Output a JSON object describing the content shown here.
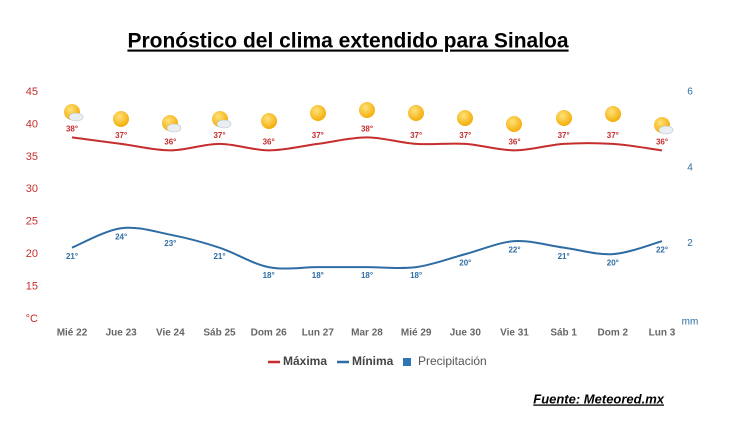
{
  "chart_data": {
    "type": "line",
    "title": "Pronóstico del clima extendido para Sinaloa",
    "source": "Fuente: Meteored.mx",
    "categories": [
      "Mié 22",
      "Jue 23",
      "Vie 24",
      "Sáb 25",
      "Dom 26",
      "Lun 27",
      "Mar 28",
      "Mié 29",
      "Jue 30",
      "Vie 31",
      "Sáb 1",
      "Dom 2",
      "Lun 3"
    ],
    "series": [
      {
        "name": "Máxima",
        "color": "#c62d2d",
        "values": [
          38,
          37,
          36,
          37,
          36,
          37,
          38,
          37,
          37,
          36,
          37,
          37,
          36
        ],
        "value_labels": [
          "38°",
          "37°",
          "36°",
          "37°",
          "36°",
          "37°",
          "38°",
          "37°",
          "37°",
          "36°",
          "37°",
          "37°",
          "36°"
        ]
      },
      {
        "name": "Mínima",
        "color": "#2e6da4",
        "values": [
          21,
          24,
          23,
          21,
          18,
          18,
          18,
          18,
          20,
          22,
          21,
          20,
          22
        ],
        "value_labels": [
          "21°",
          "24°",
          "23°",
          "21°",
          "18°",
          "18°",
          "18°",
          "18°",
          "20°",
          "22°",
          "21°",
          "20°",
          "22°"
        ]
      },
      {
        "name": "Precipitación",
        "color": "#2e75b6",
        "type": "bar",
        "axis": "y2",
        "values": [
          null,
          null,
          null,
          null,
          null,
          null,
          null,
          null,
          null,
          null,
          null,
          null,
          null
        ]
      }
    ],
    "ylim": [
      10,
      45
    ],
    "yticks": [
      {
        "value": 10,
        "label": "°C"
      },
      15,
      20,
      25,
      30,
      35,
      40,
      45
    ],
    "y2lim": [
      0,
      6
    ],
    "y2ticks": [
      {
        "value": 0,
        "label": "mm"
      },
      2,
      4,
      6
    ],
    "grid": false
  }
}
